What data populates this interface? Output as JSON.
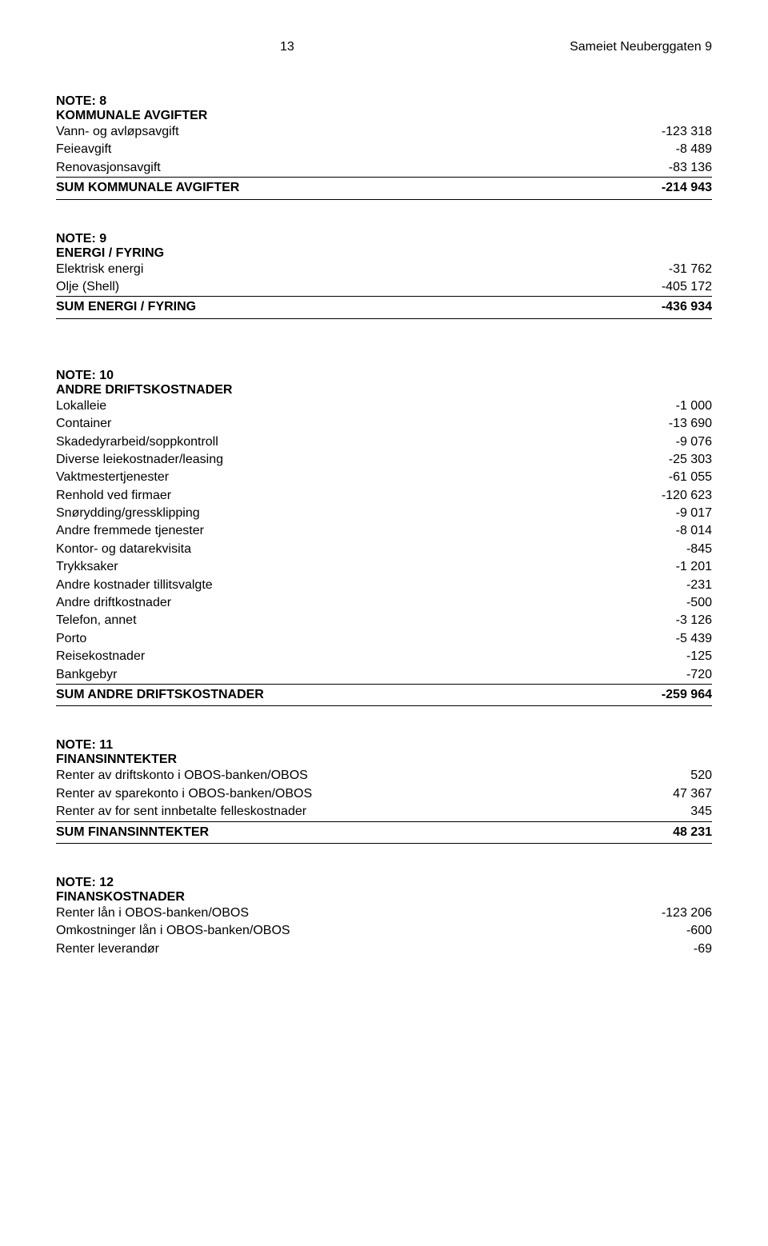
{
  "header": {
    "page_number": "13",
    "doc_title": "Sameiet Neuberggaten 9"
  },
  "note8": {
    "heading1": "NOTE: 8",
    "heading2": "KOMMUNALE AVGIFTER",
    "rows": [
      {
        "label": "Vann- og avløpsavgift",
        "value": "-123 318"
      },
      {
        "label": "Feieavgift",
        "value": "-8 489"
      },
      {
        "label": "Renovasjonsavgift",
        "value": "-83 136"
      }
    ],
    "sum": {
      "label": "SUM KOMMUNALE AVGIFTER",
      "value": "-214 943"
    }
  },
  "note9": {
    "heading1": "NOTE: 9",
    "heading2": "ENERGI / FYRING",
    "rows": [
      {
        "label": "Elektrisk energi",
        "value": "-31 762"
      },
      {
        "label": "Olje (Shell)",
        "value": "-405 172"
      }
    ],
    "sum": {
      "label": "SUM ENERGI / FYRING",
      "value": "-436 934"
    }
  },
  "note10": {
    "heading1": "NOTE: 10",
    "heading2": "ANDRE DRIFTSKOSTNADER",
    "rows": [
      {
        "label": "Lokalleie",
        "value": "-1 000"
      },
      {
        "label": "Container",
        "value": "-13 690"
      },
      {
        "label": "Skadedyrarbeid/soppkontroll",
        "value": "-9 076"
      },
      {
        "label": "Diverse leiekostnader/leasing",
        "value": "-25 303"
      },
      {
        "label": "Vaktmestertjenester",
        "value": "-61 055"
      },
      {
        "label": "Renhold ved firmaer",
        "value": "-120 623"
      },
      {
        "label": "Snørydding/gressklipping",
        "value": "-9 017"
      },
      {
        "label": "Andre fremmede tjenester",
        "value": "-8 014"
      },
      {
        "label": "Kontor- og datarekvisita",
        "value": "-845"
      },
      {
        "label": "Trykksaker",
        "value": "-1 201"
      },
      {
        "label": "Andre kostnader tillitsvalgte",
        "value": "-231"
      },
      {
        "label": "Andre driftkostnader",
        "value": "-500"
      },
      {
        "label": "Telefon, annet",
        "value": "-3 126"
      },
      {
        "label": "Porto",
        "value": "-5 439"
      },
      {
        "label": "Reisekostnader",
        "value": "-125"
      },
      {
        "label": "Bankgebyr",
        "value": "-720"
      }
    ],
    "sum": {
      "label": "SUM ANDRE DRIFTSKOSTNADER",
      "value": "-259 964"
    }
  },
  "note11": {
    "heading1": "NOTE: 11",
    "heading2": "FINANSINNTEKTER",
    "rows": [
      {
        "label": "Renter av driftskonto i OBOS-banken/OBOS",
        "value": "520"
      },
      {
        "label": "Renter av sparekonto i OBOS-banken/OBOS",
        "value": "47 367"
      },
      {
        "label": "Renter av for sent innbetalte felleskostnader",
        "value": "345"
      }
    ],
    "sum": {
      "label": "SUM FINANSINNTEKTER",
      "value": "48 231"
    }
  },
  "note12": {
    "heading1": "NOTE: 12",
    "heading2": "FINANSKOSTNADER",
    "rows": [
      {
        "label": "Renter lån i OBOS-banken/OBOS",
        "value": "-123 206"
      },
      {
        "label": "Omkostninger lån i OBOS-banken/OBOS",
        "value": "-600"
      },
      {
        "label": "Renter leverandør",
        "value": "-69"
      }
    ]
  }
}
